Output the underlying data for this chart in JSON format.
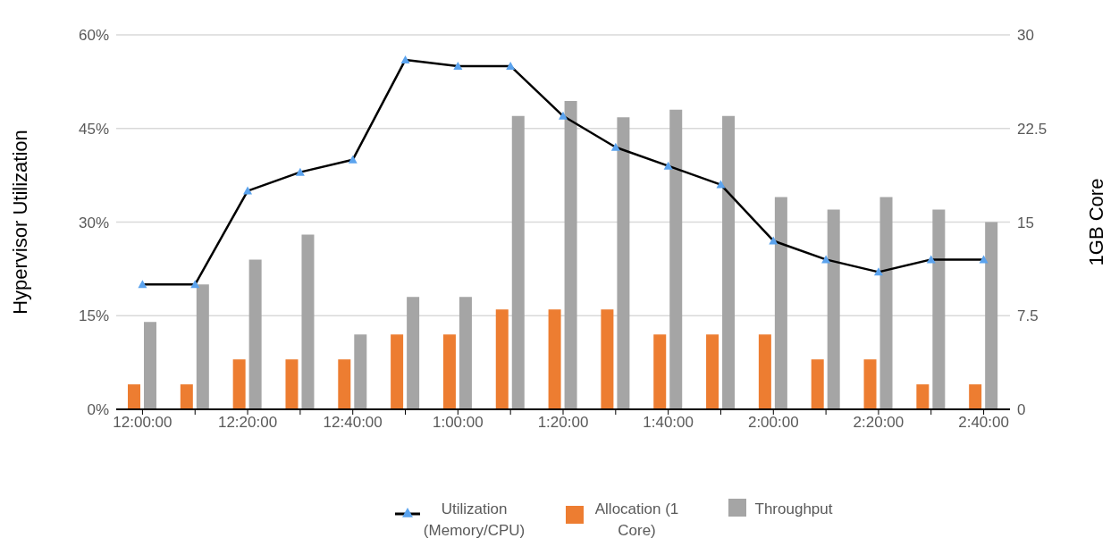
{
  "chart_data": {
    "type": "bar",
    "categories": [
      "12:00:00",
      null,
      "12:20:00",
      null,
      "12:40:00",
      null,
      "1:00:00",
      null,
      "1:20:00",
      null,
      "1:40:00",
      null,
      "2:00:00",
      null,
      "2:20:00",
      null,
      "2:40:00"
    ],
    "series": [
      {
        "name": "Utilization (Memory/CPU)",
        "type": "line",
        "color": "#000000",
        "values": [
          20,
          20,
          35,
          38,
          40,
          56,
          55,
          55,
          47,
          42,
          39,
          36,
          27,
          24,
          22,
          24,
          24
        ]
      },
      {
        "name": "Allocation (1 Core)",
        "axis": "y2",
        "color": "#ed7d31",
        "values": [
          2,
          2,
          4,
          4,
          4,
          6,
          6,
          8,
          8,
          8,
          6,
          6,
          6,
          4,
          4,
          2,
          2
        ]
      },
      {
        "name": "Throughput",
        "axis": "y2",
        "color": "#a5a5a5",
        "values": [
          7,
          10,
          12,
          14,
          6,
          9,
          9,
          23.5,
          24.7,
          23.4,
          24,
          23.5,
          17,
          16,
          17,
          16,
          15
        ]
      }
    ],
    "ylabel": "Hypervisor Utilization",
    "y2label": "1GB Core",
    "ylim": [
      0,
      60
    ],
    "yticks": [
      {
        "value": 0,
        "label": "0%"
      },
      {
        "value": 15,
        "label": "15%"
      },
      {
        "value": 30,
        "label": "30%"
      },
      {
        "value": 45,
        "label": "45%"
      },
      {
        "value": 60,
        "label": "60%"
      }
    ],
    "y2lim": [
      0,
      30
    ],
    "y2ticks": [
      0,
      7.5,
      15,
      22.5,
      30
    ],
    "grid": "y",
    "legend": "bottom",
    "marker": "triangle"
  }
}
